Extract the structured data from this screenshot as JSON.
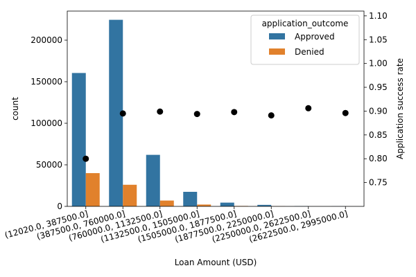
{
  "chart_data": {
    "type": "bar",
    "xlabel": "Loan Amount (USD)",
    "ylabel": "count",
    "y2label": "Application success rate",
    "ylim": [
      0,
      235000
    ],
    "y2lim": [
      0.7,
      1.11
    ],
    "yticks": [
      0,
      50000,
      100000,
      150000,
      200000
    ],
    "y2ticks": [
      0.75,
      0.8,
      0.85,
      0.9,
      0.95,
      1.0,
      1.05,
      1.1
    ],
    "categories": [
      "(12020.0, 387500.0]",
      "(387500.0, 760000.0]",
      "(760000.0, 1132500.0]",
      "(1132500.0, 1505000.0]",
      "(1505000.0, 1877500.0]",
      "(1877500.0, 2250000.0]",
      "(2250000.0, 2622500.0]",
      "(2622500.0, 2995000.0]"
    ],
    "legend": {
      "title": "application_outcome",
      "location": "upper-right"
    },
    "series": [
      {
        "name": "Approved",
        "color": "#3274a1",
        "values": [
          160500,
          224500,
          62000,
          17500,
          4500,
          1800,
          300,
          150
        ]
      },
      {
        "name": "Denied",
        "color": "#e1812c",
        "values": [
          40000,
          26000,
          7000,
          2200,
          500,
          200,
          20,
          15
        ]
      }
    ],
    "rate_series": {
      "color": "#000000",
      "values": [
        0.8,
        0.895,
        0.899,
        0.894,
        0.898,
        0.891,
        0.906,
        0.896
      ]
    }
  }
}
